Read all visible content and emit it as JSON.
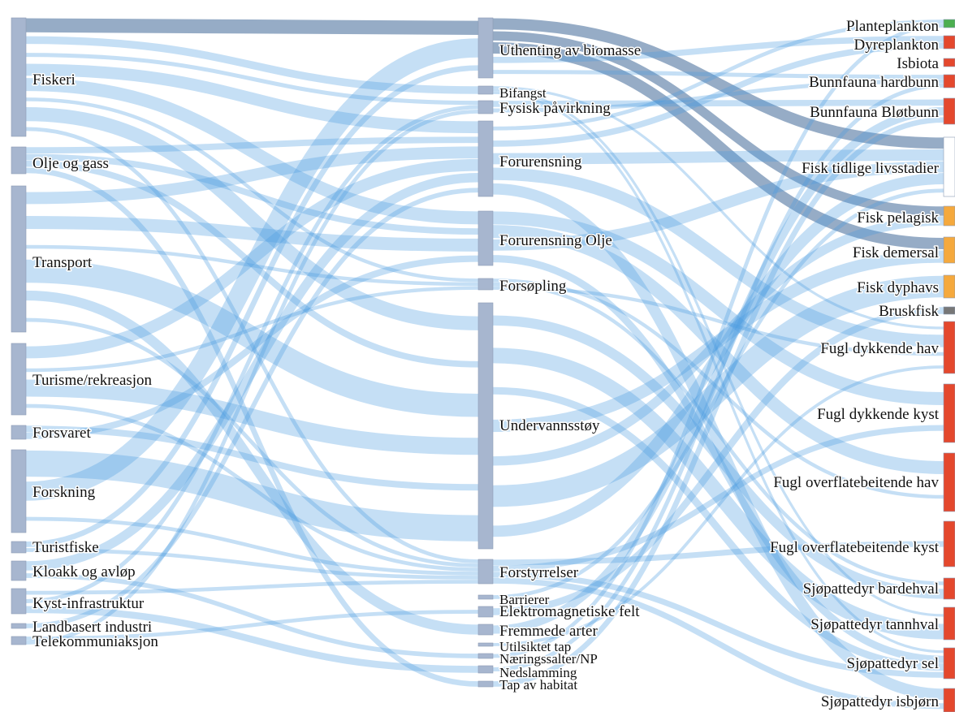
{
  "diagram": {
    "type": "sankey",
    "colors": {
      "node": "#a7b6cf",
      "node_stroke": "#8c9bb5",
      "link_light": "#4a9be0",
      "link_dark": "#5d7fa8",
      "green": "#4caf50",
      "red": "#e4482d",
      "orange": "#f5a93d"
    },
    "sources": [
      {
        "id": "fiskeri",
        "label": "Fiskeri"
      },
      {
        "id": "olje",
        "label": "Olje og gass"
      },
      {
        "id": "transport",
        "label": "Transport"
      },
      {
        "id": "turisme",
        "label": "Turisme/rekreasjon"
      },
      {
        "id": "forsvaret",
        "label": "Forsvaret"
      },
      {
        "id": "forskning",
        "label": "Forskning"
      },
      {
        "id": "turistfiske",
        "label": "Turistfiske"
      },
      {
        "id": "kloakk",
        "label": "Kloakk og avløp"
      },
      {
        "id": "kyst",
        "label": "Kyst-infrastruktur"
      },
      {
        "id": "landbasert",
        "label": "Landbasert industri"
      },
      {
        "id": "telekom",
        "label": "Telekommuniaksjon"
      }
    ],
    "pressures": [
      {
        "id": "uthenting",
        "label": "Uthenting av biomasse"
      },
      {
        "id": "bifangst",
        "label": "Bifangst"
      },
      {
        "id": "fysisk",
        "label": "Fysisk påvirkning"
      },
      {
        "id": "forurensning",
        "label": "Forurensning"
      },
      {
        "id": "forolje",
        "label": "Forurensning Olje"
      },
      {
        "id": "forsopling",
        "label": "Forsøpling"
      },
      {
        "id": "undervann",
        "label": "Undervannsstøy"
      },
      {
        "id": "forstyrrelser",
        "label": "Forstyrrelser"
      },
      {
        "id": "barrierer",
        "label": "Barrierer"
      },
      {
        "id": "elektro",
        "label": "Elektromagnetiske felt"
      },
      {
        "id": "fremmede",
        "label": "Fremmede arter"
      },
      {
        "id": "utilsiktet",
        "label": "Utilsiktet tap"
      },
      {
        "id": "naering",
        "label": "Næringssalter/NP"
      },
      {
        "id": "nedslamming",
        "label": "Nedslamming"
      },
      {
        "id": "tap",
        "label": "Tap av habitat"
      }
    ],
    "targets": [
      {
        "id": "plante",
        "label": "Planteplankton",
        "color": "#4caf50"
      },
      {
        "id": "dyre",
        "label": "Dyreplankton",
        "color": "#e4482d"
      },
      {
        "id": "isbiota",
        "label": "Isbiota",
        "color": "#e4482d"
      },
      {
        "id": "hardbunn",
        "label": "Bunnfauna hardbunn",
        "color": "#e4482d"
      },
      {
        "id": "blotbunn",
        "label": "Bunnfauna Bløtbunn",
        "color": "#e4482d"
      },
      {
        "id": "fisktidlig",
        "label": "Fisk tidlige livsstadier",
        "color": "#ffffff"
      },
      {
        "id": "pelagisk",
        "label": "Fisk pelagisk",
        "color": "#f5a93d"
      },
      {
        "id": "demersal",
        "label": "Fisk demersal",
        "color": "#f5a93d"
      },
      {
        "id": "dyphavs",
        "label": "Fisk dyphavs",
        "color": "#f5a93d"
      },
      {
        "id": "bruskfisk",
        "label": "Bruskfisk",
        "color": "#777777"
      },
      {
        "id": "fugldykhav",
        "label": "Fugl dykkende hav",
        "color": "#e4482d"
      },
      {
        "id": "fugldykkyst",
        "label": "Fugl dykkende kyst",
        "color": "#e4482d"
      },
      {
        "id": "fugloverhav",
        "label": "Fugl overflatebeitende hav",
        "color": "#e4482d"
      },
      {
        "id": "fugloverkyst",
        "label": "Fugl overflatebeitende kyst",
        "color": "#e4482d"
      },
      {
        "id": "bardehval",
        "label": "Sjøpattedyr bardehval",
        "color": "#e4482d"
      },
      {
        "id": "tannhval",
        "label": "Sjøpattedyr tannhval",
        "color": "#e4482d"
      },
      {
        "id": "sel",
        "label": "Sjøpattedyr sel",
        "color": "#e4482d"
      },
      {
        "id": "isbjorn",
        "label": "Sjøpattedyr isbjørn",
        "color": "#e4482d"
      }
    ],
    "links": [
      {
        "s": "fiskeri",
        "t": "uthenting",
        "dark": true
      },
      {
        "s": "fiskeri",
        "t": "bifangst"
      },
      {
        "s": "fiskeri",
        "t": "fysisk"
      },
      {
        "s": "fiskeri",
        "t": "forurensning"
      },
      {
        "s": "fiskeri",
        "t": "forolje"
      },
      {
        "s": "fiskeri",
        "t": "forsopling"
      },
      {
        "s": "fiskeri",
        "t": "undervann"
      },
      {
        "s": "fiskeri",
        "t": "forstyrrelser"
      },
      {
        "s": "olje",
        "t": "forurensning"
      },
      {
        "s": "olje",
        "t": "forolje"
      },
      {
        "s": "olje",
        "t": "undervann"
      },
      {
        "s": "olje",
        "t": "tap"
      },
      {
        "s": "transport",
        "t": "forurensning"
      },
      {
        "s": "transport",
        "t": "forolje"
      },
      {
        "s": "transport",
        "t": "forsopling"
      },
      {
        "s": "transport",
        "t": "undervann"
      },
      {
        "s": "transport",
        "t": "fremmede"
      },
      {
        "s": "transport",
        "t": "forstyrrelser"
      },
      {
        "s": "turisme",
        "t": "forurensning"
      },
      {
        "s": "turisme",
        "t": "forsopling"
      },
      {
        "s": "turisme",
        "t": "undervann"
      },
      {
        "s": "turisme",
        "t": "forstyrrelser"
      },
      {
        "s": "forsvaret",
        "t": "undervann"
      },
      {
        "s": "forsvaret",
        "t": "forolje"
      },
      {
        "s": "forskning",
        "t": "undervann"
      },
      {
        "s": "forskning",
        "t": "uthenting"
      },
      {
        "s": "forskning",
        "t": "forstyrrelser"
      },
      {
        "s": "turistfiske",
        "t": "uthenting"
      },
      {
        "s": "turistfiske",
        "t": "forstyrrelser"
      },
      {
        "s": "kloakk",
        "t": "forurensning"
      },
      {
        "s": "kloakk",
        "t": "naering"
      },
      {
        "s": "kyst",
        "t": "forstyrrelser"
      },
      {
        "s": "kyst",
        "t": "fysisk"
      },
      {
        "s": "kyst",
        "t": "nedslamming"
      },
      {
        "s": "landbasert",
        "t": "forurensning"
      },
      {
        "s": "telekom",
        "t": "elektro"
      },
      {
        "s": "telekom",
        "t": "fysisk"
      },
      {
        "s": "uthenting",
        "t": "fisktidlig",
        "dark": true
      },
      {
        "s": "uthenting",
        "t": "pelagisk",
        "dark": true
      },
      {
        "s": "uthenting",
        "t": "demersal",
        "dark": true
      },
      {
        "s": "uthenting",
        "t": "dyre"
      },
      {
        "s": "uthenting",
        "t": "hardbunn"
      },
      {
        "s": "bifangst",
        "t": "fugldykhav"
      },
      {
        "s": "bifangst",
        "t": "tannhval"
      },
      {
        "s": "bifangst",
        "t": "sel"
      },
      {
        "s": "fysisk",
        "t": "blotbunn"
      },
      {
        "s": "fysisk",
        "t": "hardbunn"
      },
      {
        "s": "forurensning",
        "t": "plante"
      },
      {
        "s": "forurensning",
        "t": "dyre"
      },
      {
        "s": "forurensning",
        "t": "fisktidlig"
      },
      {
        "s": "forurensning",
        "t": "fugldykhav"
      },
      {
        "s": "forurensning",
        "t": "isbjorn"
      },
      {
        "s": "forolje",
        "t": "fugldykkyst"
      },
      {
        "s": "forolje",
        "t": "fugloverhav"
      },
      {
        "s": "forolje",
        "t": "fisktidlig"
      },
      {
        "s": "forolje",
        "t": "sel"
      },
      {
        "s": "forsopling",
        "t": "fugloverhav"
      },
      {
        "s": "forsopling",
        "t": "bardehval"
      },
      {
        "s": "forsopling",
        "t": "fugldykhav"
      },
      {
        "s": "undervann",
        "t": "bardehval"
      },
      {
        "s": "undervann",
        "t": "tannhval"
      },
      {
        "s": "undervann",
        "t": "sel"
      },
      {
        "s": "undervann",
        "t": "demersal"
      },
      {
        "s": "undervann",
        "t": "pelagisk"
      },
      {
        "s": "undervann",
        "t": "dyphavs"
      },
      {
        "s": "undervann",
        "t": "fisktidlig"
      },
      {
        "s": "forstyrrelser",
        "t": "fugloverkyst"
      },
      {
        "s": "forstyrrelser",
        "t": "fugldykkyst"
      },
      {
        "s": "forstyrrelser",
        "t": "sel"
      },
      {
        "s": "forstyrrelser",
        "t": "isbjorn"
      },
      {
        "s": "barrierer",
        "t": "fisktidlig"
      },
      {
        "s": "elektro",
        "t": "bruskfisk"
      },
      {
        "s": "fremmede",
        "t": "blotbunn"
      },
      {
        "s": "utilsiktet",
        "t": "fugldykhav"
      },
      {
        "s": "naering",
        "t": "plante"
      },
      {
        "s": "nedslamming",
        "t": "hardbunn"
      },
      {
        "s": "tap",
        "t": "blotbunn"
      }
    ]
  }
}
